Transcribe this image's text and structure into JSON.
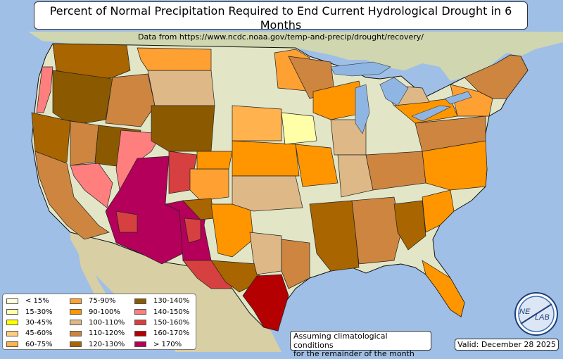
{
  "title": {
    "main": "Percent of Normal Precipitation Required to End Current Hydrological Drought in 6 Months",
    "sub": "Data from https://www.ncdc.noaa.gov/temp-and-precip/drought/recovery/"
  },
  "legend": {
    "columns": [
      [
        {
          "label": "< 15%",
          "color": "#ffffd9"
        },
        {
          "label": "15-30%",
          "color": "#ffffa8"
        },
        {
          "label": "30-45%",
          "color": "#ffff00"
        },
        {
          "label": "45-60%",
          "color": "#ffcc80"
        },
        {
          "label": "60-75%",
          "color": "#ffb24d"
        }
      ],
      [
        {
          "label": "75-90%",
          "color": "#ffa033"
        },
        {
          "label": "90-100%",
          "color": "#ff9600"
        },
        {
          "label": "100-110%",
          "color": "#deb887"
        },
        {
          "label": "110-120%",
          "color": "#cd853f"
        },
        {
          "label": "120-130%",
          "color": "#a86500"
        }
      ],
      [
        {
          "label": "130-140%",
          "color": "#8b5a00"
        },
        {
          "label": "140-150%",
          "color": "#ff7f7f"
        },
        {
          "label": "150-160%",
          "color": "#d74040"
        },
        {
          "label": "160-170%",
          "color": "#b40000"
        },
        {
          "label": "> 170%",
          "color": "#b4005a"
        }
      ]
    ]
  },
  "note": {
    "line1": "Assuming climatological conditions",
    "line2": "for the remainder of the month"
  },
  "valid": "Valid: December 28 2025",
  "logo": {
    "text_left": "NE",
    "text_right": "LAB"
  },
  "colors": {
    "ocean": "#9fbfe6",
    "land": "#e3e6c6",
    "canada": "#cfd6b0",
    "mexico": "#d9cfa4",
    "lakes": "#8fb5e3"
  }
}
